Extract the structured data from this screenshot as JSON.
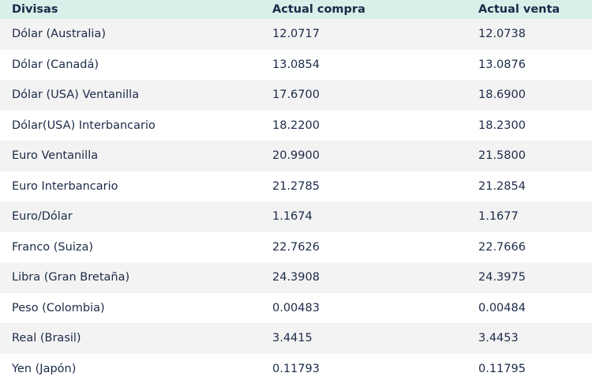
{
  "table": {
    "header": [
      "Divisas",
      "Actual compra",
      "Actual venta"
    ],
    "rows": [
      [
        "Dólar (Australia)",
        "12.0717",
        "12.0738"
      ],
      [
        "Dólar (Canadá)",
        "13.0854",
        "13.0876"
      ],
      [
        "Dólar (USA) Ventanilla",
        "17.6700",
        "18.6900"
      ],
      [
        "Dólar(USA) Interbancario",
        "18.2200",
        "18.2300"
      ],
      [
        "Euro Ventanilla",
        "20.9900",
        "21.5800"
      ],
      [
        "Euro Interbancario",
        "21.2785",
        "21.2854"
      ],
      [
        "Euro/Dólar",
        "1.1674",
        "1.1677"
      ],
      [
        "Franco (Suiza)",
        "22.7626",
        "22.7666"
      ],
      [
        "Libra (Gran Bretaña)",
        "24.3908",
        "24.3975"
      ],
      [
        "Peso (Colombia)",
        "0.00483",
        "0.00484"
      ],
      [
        "Real (Brasil)",
        "3.4415",
        "3.4453"
      ],
      [
        "Yen (Japón)",
        "0.11793",
        "0.11795"
      ]
    ]
  }
}
